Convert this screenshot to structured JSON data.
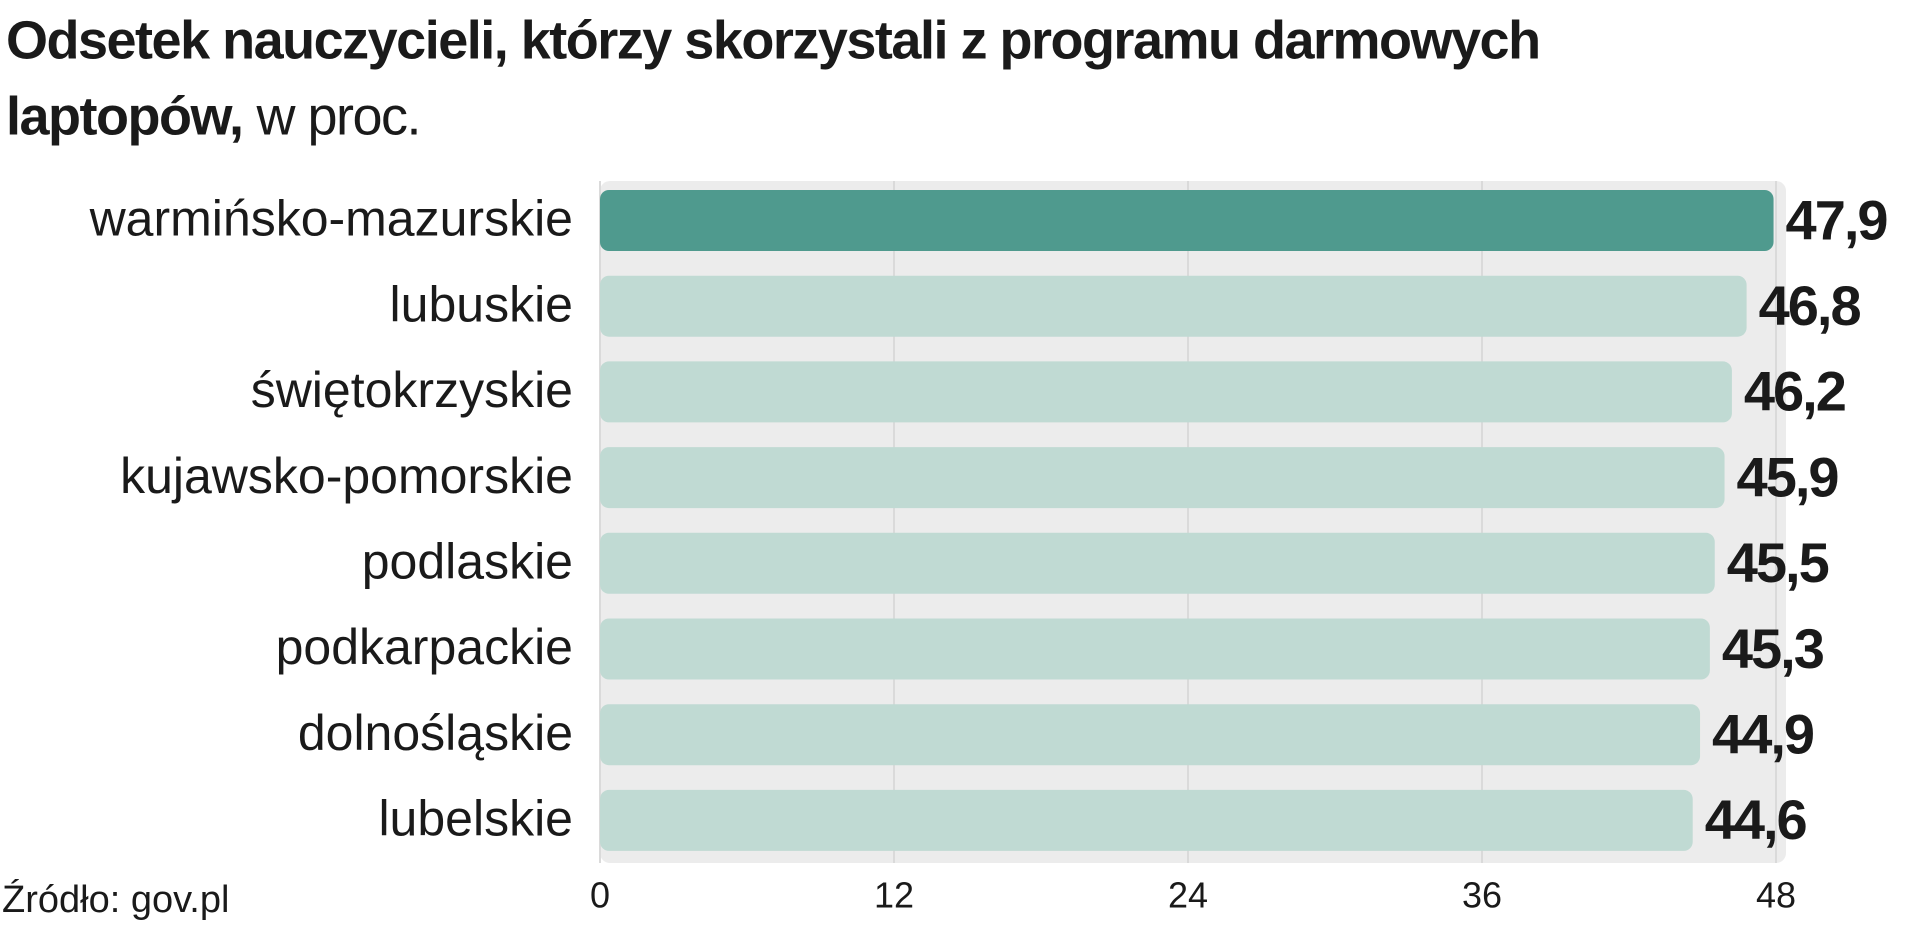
{
  "chart_data": {
    "type": "bar",
    "orientation": "horizontal",
    "title": "Odsetek nauczycieli, którzy skorzystali z programu darmowych laptopów,",
    "subtitle": "w proc.",
    "source": "Źródło: gov.pl",
    "categories": [
      "warmińsko-mazurskie",
      "lubuskie",
      "świętokrzyskie",
      "kujawsko-pomorskie",
      "podlaskie",
      "podkarpackie",
      "dolnośląskie",
      "lubelskie"
    ],
    "values": [
      47.9,
      46.8,
      46.2,
      45.9,
      45.5,
      45.3,
      44.9,
      44.6
    ],
    "value_labels": [
      "47,9",
      "46,8",
      "46,2",
      "45,9",
      "45,5",
      "45,3",
      "44,9",
      "44,6"
    ],
    "colors": [
      "#4f9a8e",
      "#c0dad3",
      "#c0dad3",
      "#c0dad3",
      "#c0dad3",
      "#c0dad3",
      "#c0dad3",
      "#c0dad3"
    ],
    "xlim": [
      0,
      48
    ],
    "xticks": [
      0,
      12,
      24,
      36,
      48
    ],
    "grid": true
  }
}
